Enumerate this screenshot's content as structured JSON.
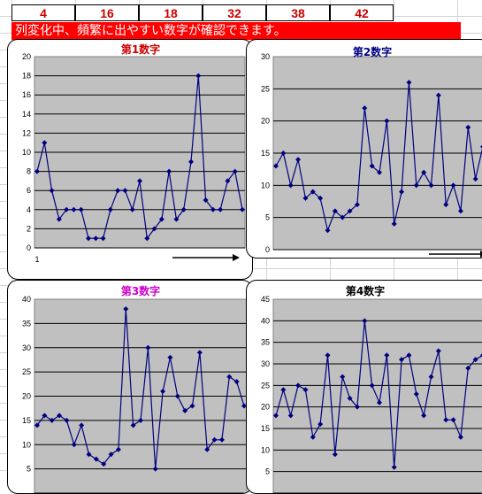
{
  "numbers": [
    "4",
    "16",
    "18",
    "32",
    "38",
    "42"
  ],
  "banner": "列変化中、頻繁に出やすい数字が確認できます。",
  "colors": {
    "plot_bg": "#c0c0c0",
    "line": "#000080",
    "banner_bg": "#ff0000",
    "number_text": "#cc0000"
  },
  "chart_data": [
    {
      "type": "line",
      "title": "第1数字",
      "title_color": "#cc0000",
      "ylim": [
        0,
        20
      ],
      "yticks": [
        0,
        2,
        4,
        6,
        8,
        10,
        12,
        14,
        16,
        18,
        20
      ],
      "xtick_labels": [
        "1"
      ],
      "values": [
        8,
        11,
        6,
        3,
        4,
        4,
        4,
        1,
        1,
        1,
        4,
        6,
        6,
        4,
        7,
        1,
        2,
        3,
        8,
        3,
        4,
        9,
        18,
        5,
        4,
        4,
        7,
        8,
        4
      ]
    },
    {
      "type": "line",
      "title": "第2数字",
      "title_color": "#000080",
      "ylim": [
        0,
        30
      ],
      "yticks": [
        0,
        5,
        10,
        15,
        20,
        25,
        30
      ],
      "xtick_labels": [],
      "values": [
        13,
        15,
        10,
        14,
        8,
        9,
        8,
        3,
        6,
        5,
        6,
        7,
        22,
        13,
        12,
        20,
        4,
        9,
        26,
        10,
        12,
        10,
        24,
        7,
        10,
        6,
        19,
        11,
        16
      ]
    },
    {
      "type": "line",
      "title": "第3数字",
      "title_color": "#cc00cc",
      "ylim": [
        0,
        40
      ],
      "yticks": [
        5,
        10,
        15,
        20,
        25,
        30,
        35,
        40
      ],
      "xtick_labels": [],
      "values": [
        14,
        16,
        15,
        16,
        15,
        10,
        14,
        8,
        7,
        6,
        8,
        9,
        38,
        14,
        15,
        30,
        5,
        21,
        28,
        20,
        17,
        18,
        29,
        9,
        11,
        11,
        24,
        23,
        18
      ]
    },
    {
      "type": "line",
      "title": "第4数字",
      "title_color": "#000000",
      "ylim": [
        0,
        45
      ],
      "yticks": [
        5,
        10,
        15,
        20,
        25,
        30,
        35,
        40,
        45
      ],
      "xtick_labels": [],
      "values": [
        18,
        24,
        18,
        25,
        24,
        13,
        16,
        32,
        9,
        27,
        22,
        20,
        40,
        25,
        21,
        32,
        6,
        31,
        32,
        23,
        18,
        27,
        33,
        17,
        17,
        13,
        29,
        31,
        32
      ]
    }
  ]
}
